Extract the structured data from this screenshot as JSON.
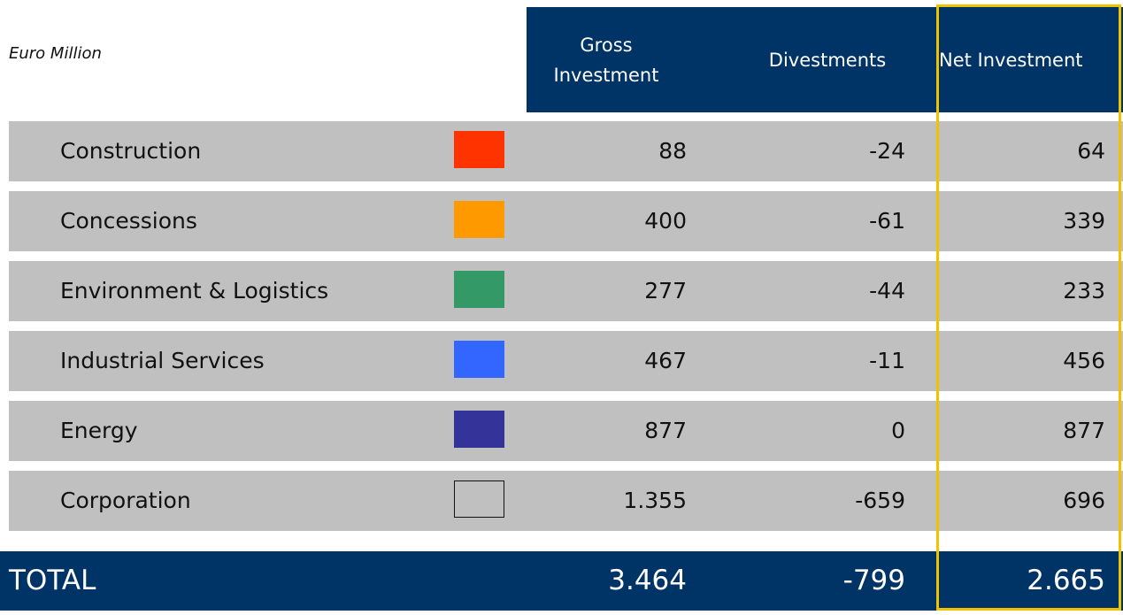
{
  "unit": "Euro Million",
  "columns": [
    "Gross Investment",
    "Divestments",
    "Net Investment"
  ],
  "rows": [
    {
      "name": "Construction",
      "color": "#ff3300",
      "values": [
        "88",
        "-24",
        "64"
      ]
    },
    {
      "name": "Concessions",
      "color": "#ff9900",
      "values": [
        "400",
        "-61",
        "339"
      ]
    },
    {
      "name": "Environment & Logistics",
      "color": "#339966",
      "values": [
        "277",
        "-44",
        "233"
      ]
    },
    {
      "name": "Industrial Services",
      "color": "#3366ff",
      "values": [
        "467",
        "-11",
        "456"
      ]
    },
    {
      "name": "Energy",
      "color": "#333399",
      "values": [
        "877",
        "0",
        "877"
      ]
    },
    {
      "name": "Corporation",
      "color": "#c0c0c0",
      "values": [
        "1.355",
        "-659",
        "696"
      ]
    }
  ],
  "total": {
    "name": "TOTAL",
    "values": [
      "3.464",
      "-799",
      "2.665"
    ]
  }
}
